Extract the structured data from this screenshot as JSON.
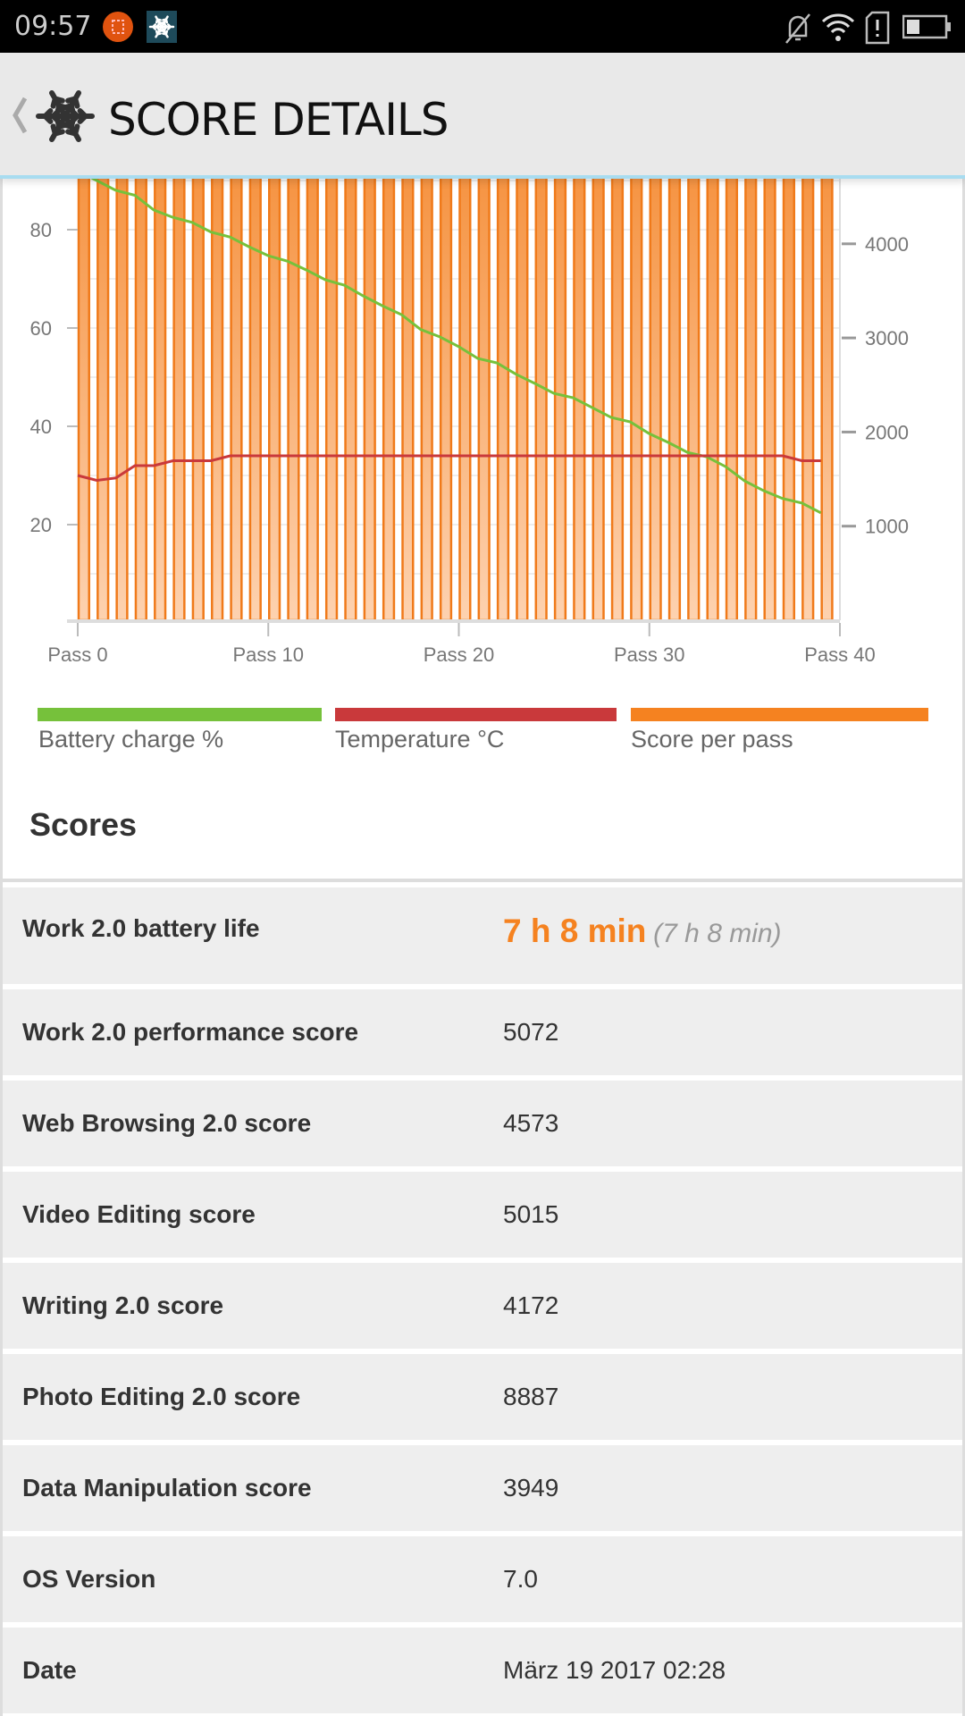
{
  "status_bar": {
    "time": "09:57",
    "icons": [
      "screenshot-icon",
      "snowflake-app-icon",
      "muted-bell-icon",
      "wifi-icon",
      "sim-alert-icon",
      "battery-icon"
    ]
  },
  "header": {
    "title": "SCORE DETAILS",
    "back_icon": "chevron-left-icon",
    "logo_icon": "snowflake-icon"
  },
  "chart_data": {
    "type": "bar+line",
    "x_tick_labels": [
      "Pass 0",
      "Pass 10",
      "Pass 20",
      "Pass 30",
      "Pass 40"
    ],
    "x_range": [
      0,
      40
    ],
    "left_axis": {
      "ticks": [
        20,
        40,
        60,
        80
      ],
      "range": [
        0,
        90
      ]
    },
    "right_axis": {
      "ticks": [
        1000,
        2000,
        3000,
        4000
      ],
      "range": [
        0,
        4700
      ]
    },
    "grid": true,
    "legend_placement": "bottom",
    "series": [
      {
        "name": "Battery charge %",
        "type": "line",
        "axis": "left",
        "color": "#76c13b",
        "values": [
          92,
          90,
          88,
          87,
          84,
          82.5,
          81.5,
          79.5,
          78.5,
          76.5,
          74.7,
          73.6,
          71.8,
          69.8,
          68.7,
          66.5,
          64.5,
          62.7,
          59.7,
          58.2,
          56.2,
          53.8,
          52.9,
          50.6,
          48.7,
          46.7,
          45.8,
          43.8,
          41.8,
          40.9,
          38.5,
          36.7,
          34.7,
          33.8,
          31.8,
          28.9,
          26.9,
          25.3,
          24.4,
          22.4
        ]
      },
      {
        "name": "Temperature °C",
        "type": "line",
        "axis": "left",
        "color": "#c9393b",
        "values": [
          30,
          29,
          29.5,
          32,
          32,
          33,
          33,
          33,
          34,
          34,
          34,
          34,
          34,
          34,
          34,
          34,
          34,
          34,
          34,
          34,
          34,
          34,
          34,
          34,
          34,
          34,
          34,
          34,
          34,
          34,
          34,
          34,
          34,
          34,
          34,
          34,
          34,
          34,
          33,
          33
        ]
      },
      {
        "name": "Score per pass",
        "type": "bar",
        "axis": "right",
        "color": "#f58220",
        "values": [
          5072,
          5072,
          5072,
          5072,
          5072,
          5072,
          5072,
          5072,
          5072,
          5072,
          5072,
          5072,
          5072,
          5072,
          5072,
          5072,
          5072,
          5072,
          5072,
          5072,
          5072,
          5072,
          5072,
          5072,
          5072,
          5072,
          5072,
          5072,
          5072,
          5072,
          5072,
          5072,
          5072,
          5072,
          5072,
          5072,
          5072,
          5072,
          5072,
          5072
        ]
      }
    ]
  },
  "scores": {
    "title": "Scores",
    "rows": [
      {
        "label": "Work 2.0 battery life",
        "value": "7 h 8 min",
        "sub": "(7 h 8 min)"
      },
      {
        "label": "Work 2.0 performance score",
        "value": "5072"
      },
      {
        "label": "Web Browsing 2.0 score",
        "value": "4573"
      },
      {
        "label": "Video Editing score",
        "value": "5015"
      },
      {
        "label": "Writing 2.0 score",
        "value": "4172"
      },
      {
        "label": "Photo Editing 2.0 score",
        "value": "8887"
      },
      {
        "label": "Data Manipulation score",
        "value": "3949"
      },
      {
        "label": "OS Version",
        "value": "7.0"
      },
      {
        "label": "Date",
        "value": "März 19 2017 02:28"
      }
    ]
  }
}
